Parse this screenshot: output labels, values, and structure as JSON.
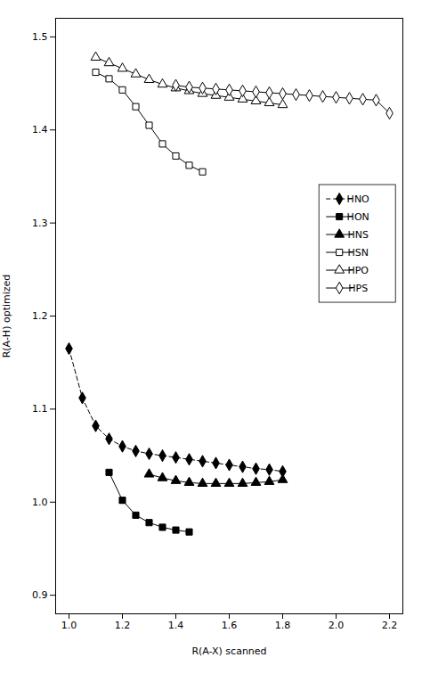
{
  "chart_data": {
    "type": "line",
    "xlabel": "R(A-X) scanned",
    "ylabel": "R(A-H) optimized",
    "xlim": [
      0.95,
      2.25
    ],
    "ylim": [
      0.88,
      1.52
    ],
    "xticks": [
      {
        "value": 1.0,
        "label": "1.0"
      },
      1.2,
      1.4,
      1.6,
      1.8,
      {
        "value": 2.0,
        "label": "2.0"
      },
      2.2
    ],
    "yticks": [
      0.9,
      {
        "value": 1.0,
        "label": "1.0"
      },
      1.1,
      1.2,
      1.3,
      1.4,
      1.5
    ],
    "legend": "right",
    "series": [
      {
        "name": "HNO",
        "color": "black",
        "marker": "diamond",
        "line_style": "dashed",
        "x": [
          1.0,
          1.05,
          1.1,
          1.15,
          1.2,
          1.25,
          1.3,
          1.35,
          1.4,
          1.45,
          1.5,
          1.55,
          1.6,
          1.65,
          1.7,
          1.75,
          1.8
        ],
        "values": [
          1.165,
          1.112,
          1.082,
          1.068,
          1.06,
          1.055,
          1.052,
          1.05,
          1.048,
          1.046,
          1.044,
          1.042,
          1.04,
          1.038,
          1.036,
          1.035,
          1.033
        ]
      },
      {
        "name": "HON",
        "color": "black",
        "marker": "square",
        "line_style": "solid",
        "x": [
          1.15,
          1.2,
          1.25,
          1.3,
          1.35,
          1.4,
          1.45
        ],
        "values": [
          1.032,
          1.002,
          0.986,
          0.978,
          0.973,
          0.97,
          0.968
        ]
      },
      {
        "name": "HNS",
        "color": "black",
        "marker": "triangle",
        "line_style": "solid",
        "x": [
          1.3,
          1.35,
          1.4,
          1.45,
          1.5,
          1.55,
          1.6,
          1.65,
          1.7,
          1.75,
          1.8
        ],
        "values": [
          1.03,
          1.026,
          1.023,
          1.021,
          1.02,
          1.02,
          1.02,
          1.02,
          1.021,
          1.022,
          1.024
        ]
      },
      {
        "name": "HSN",
        "color": "black",
        "marker": "square-open",
        "line_style": "solid",
        "x": [
          1.1,
          1.15,
          1.2,
          1.25,
          1.3,
          1.35,
          1.4,
          1.45,
          1.5
        ],
        "values": [
          1.462,
          1.455,
          1.443,
          1.425,
          1.405,
          1.385,
          1.372,
          1.362,
          1.355
        ]
      },
      {
        "name": "HPO",
        "color": "black",
        "marker": "triangle-open",
        "line_style": "solid",
        "x": [
          1.1,
          1.15,
          1.2,
          1.25,
          1.3,
          1.35,
          1.4,
          1.45,
          1.5,
          1.55,
          1.6,
          1.65,
          1.7,
          1.75,
          1.8
        ],
        "values": [
          1.478,
          1.472,
          1.466,
          1.46,
          1.454,
          1.449,
          1.445,
          1.442,
          1.439,
          1.437,
          1.435,
          1.433,
          1.431,
          1.429,
          1.427
        ]
      },
      {
        "name": "HPS",
        "color": "black",
        "marker": "diamond-open",
        "line_style": "solid",
        "x": [
          1.4,
          1.45,
          1.5,
          1.55,
          1.6,
          1.65,
          1.7,
          1.75,
          1.8,
          1.85,
          1.9,
          1.95,
          2.0,
          2.05,
          2.1,
          2.15,
          2.2
        ],
        "values": [
          1.448,
          1.446,
          1.445,
          1.444,
          1.443,
          1.442,
          1.441,
          1.44,
          1.439,
          1.438,
          1.437,
          1.436,
          1.435,
          1.434,
          1.433,
          1.432,
          1.418
        ]
      }
    ]
  }
}
